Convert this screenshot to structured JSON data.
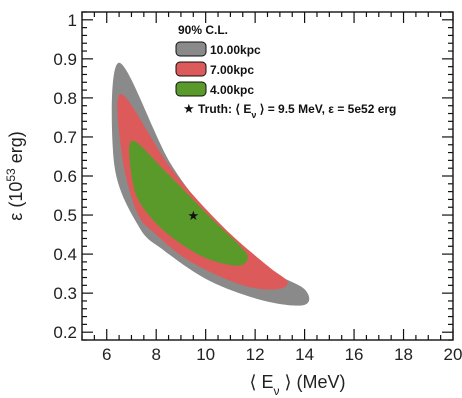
{
  "chart_data": {
    "type": "contour",
    "title": "",
    "xlabel": "⟨ E",
    "xlabel_sub": "ν",
    "xlabel_tail": " ⟩ (MeV)",
    "ylabel": "ε (10",
    "ylabel_sup": "53",
    "ylabel_tail": " erg)",
    "xlim": [
      5,
      20
    ],
    "ylim": [
      0.18,
      1.02
    ],
    "x_ticks": [
      6,
      8,
      10,
      12,
      14,
      16,
      18,
      20
    ],
    "y_ticks": [
      0.2,
      0.3,
      0.4,
      0.5,
      0.6,
      0.7,
      0.8,
      0.9,
      1.0
    ],
    "x_tick_labels": [
      "6",
      "8",
      "10",
      "12",
      "14",
      "16",
      "18",
      "20"
    ],
    "y_tick_labels": [
      "0.2",
      "0.3",
      "0.4",
      "0.5",
      "0.6",
      "0.7",
      "0.8",
      "0.9",
      "1"
    ],
    "grid": false,
    "legend": {
      "placement": "top-right",
      "title": "90% C.L.",
      "entries": [
        {
          "label": "10.00kpc",
          "color": "#8a8a8a"
        },
        {
          "label": "7.00kpc",
          "color": "#dd5a5a"
        },
        {
          "label": "4.00kpc",
          "color": "#5a9a2a"
        }
      ],
      "truth_label": "Truth: ⟨ E",
      "truth_sub": "ν",
      "truth_tail": " ⟩ = 9.5 MeV, ε = 5e52 erg"
    },
    "series": [
      {
        "color": "#8a8a8a",
        "points": [
          [
            6.5,
            0.89
          ],
          [
            8.6,
            0.63
          ],
          [
            10.6,
            0.47
          ],
          [
            12.6,
            0.36
          ],
          [
            14.0,
            0.31
          ],
          [
            14.0,
            0.27
          ],
          [
            12.4,
            0.28
          ],
          [
            10.2,
            0.33
          ],
          [
            8.3,
            0.41
          ],
          [
            7.3,
            0.47
          ],
          [
            6.3,
            0.63
          ]
        ]
      },
      {
        "color": "#dd5a5a",
        "points": [
          [
            6.6,
            0.81
          ],
          [
            8.6,
            0.62
          ],
          [
            10.7,
            0.47
          ],
          [
            12.5,
            0.37
          ],
          [
            13.3,
            0.33
          ],
          [
            12.9,
            0.31
          ],
          [
            11.5,
            0.32
          ],
          [
            9.4,
            0.38
          ],
          [
            8.0,
            0.45
          ],
          [
            7.2,
            0.51
          ],
          [
            6.6,
            0.66
          ]
        ]
      },
      {
        "color": "#5a9a2a",
        "points": [
          [
            7.0,
            0.69
          ],
          [
            8.4,
            0.61
          ],
          [
            10.1,
            0.5
          ],
          [
            11.4,
            0.42
          ],
          [
            11.7,
            0.39
          ],
          [
            11.3,
            0.37
          ],
          [
            10.0,
            0.39
          ],
          [
            8.7,
            0.44
          ],
          [
            7.7,
            0.5
          ],
          [
            7.1,
            0.57
          ]
        ]
      }
    ],
    "truth_point": {
      "x": 9.5,
      "y": 0.5,
      "label": "Truth"
    }
  }
}
